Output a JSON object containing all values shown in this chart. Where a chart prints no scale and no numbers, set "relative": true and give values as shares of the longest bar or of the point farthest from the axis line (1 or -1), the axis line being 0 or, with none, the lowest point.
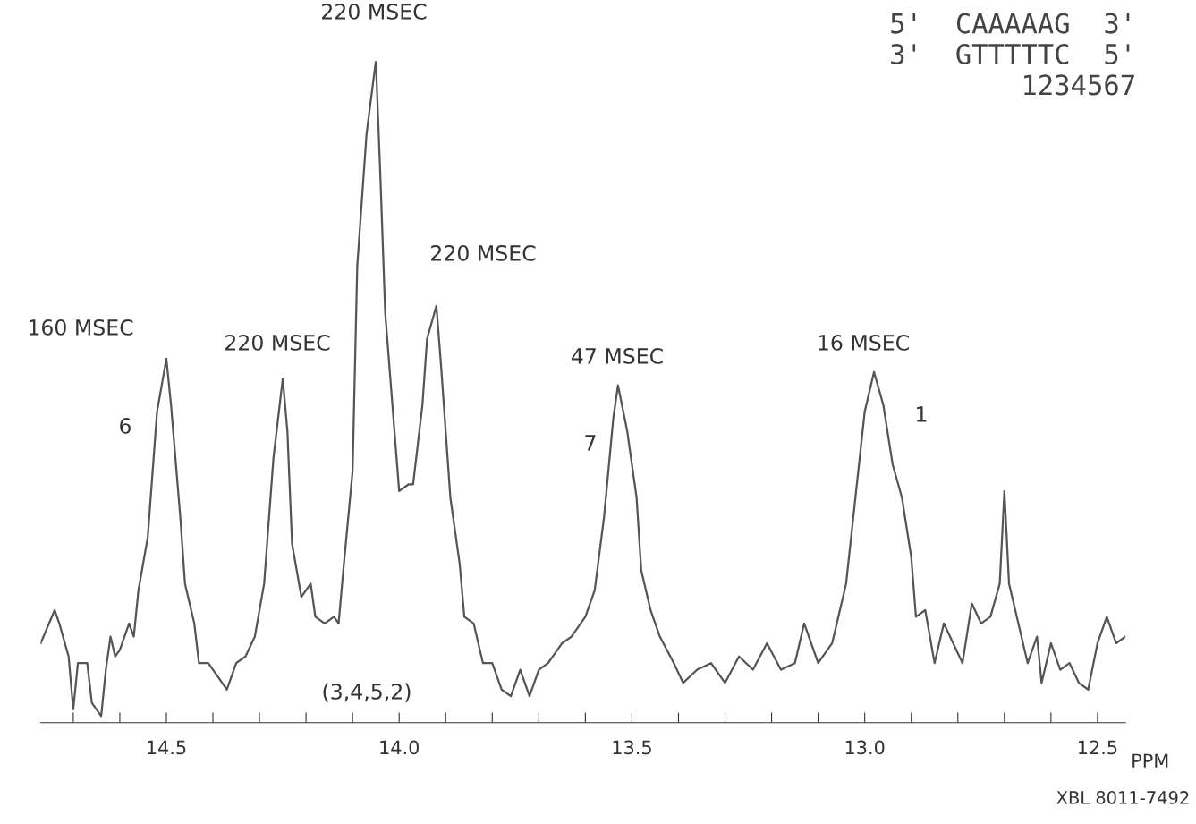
{
  "chart_data": {
    "type": "line",
    "relative": true,
    "xlabel": "PPM",
    "xlim": [
      14.77,
      12.44
    ],
    "xticks": [
      {
        "value": 14.7,
        "label": null
      },
      {
        "value": 14.6,
        "label": null
      },
      {
        "value": 14.5,
        "label": "14.5"
      },
      {
        "value": 14.4,
        "label": null
      },
      {
        "value": 14.3,
        "label": null
      },
      {
        "value": 14.2,
        "label": null
      },
      {
        "value": 14.1,
        "label": null
      },
      {
        "value": 14.0,
        "label": "14.0"
      },
      {
        "value": 13.9,
        "label": null
      },
      {
        "value": 13.8,
        "label": null
      },
      {
        "value": 13.7,
        "label": null
      },
      {
        "value": 13.6,
        "label": null
      },
      {
        "value": 13.5,
        "label": "13.5"
      },
      {
        "value": 13.4,
        "label": null
      },
      {
        "value": 13.3,
        "label": null
      },
      {
        "value": 13.2,
        "label": null
      },
      {
        "value": 13.1,
        "label": null
      },
      {
        "value": 13.0,
        "label": "13.0"
      },
      {
        "value": 12.9,
        "label": null
      },
      {
        "value": 12.8,
        "label": null
      },
      {
        "value": 12.7,
        "label": null
      },
      {
        "value": 12.6,
        "label": null
      },
      {
        "value": 12.5,
        "label": "12.5"
      }
    ],
    "grid": false,
    "marker": "none",
    "line_style": "solid",
    "series": [
      {
        "color": "#555555",
        "x": [
          14.77,
          14.74,
          14.73,
          14.71,
          14.7,
          14.69,
          14.67,
          14.66,
          14.64,
          14.63,
          14.62,
          14.61,
          14.6,
          14.58,
          14.57,
          14.56,
          14.54,
          14.52,
          14.5,
          14.49,
          14.47,
          14.46,
          14.44,
          14.43,
          14.41,
          14.39,
          14.37,
          14.35,
          14.33,
          14.31,
          14.29,
          14.27,
          14.25,
          14.24,
          14.23,
          14.21,
          14.19,
          14.18,
          14.16,
          14.14,
          14.13,
          14.12,
          14.1,
          14.09,
          14.07,
          14.05,
          14.04,
          14.03,
          14.01,
          14.0,
          13.98,
          13.97,
          13.95,
          13.94,
          13.92,
          13.91,
          13.89,
          13.87,
          13.86,
          13.84,
          13.82,
          13.8,
          13.78,
          13.76,
          13.74,
          13.72,
          13.7,
          13.68,
          13.65,
          13.63,
          13.6,
          13.58,
          13.56,
          13.54,
          13.53,
          13.51,
          13.49,
          13.48,
          13.46,
          13.44,
          13.41,
          13.39,
          13.36,
          13.33,
          13.3,
          13.27,
          13.24,
          13.21,
          13.18,
          13.15,
          13.13,
          13.1,
          13.07,
          13.04,
          13.02,
          13.0,
          12.98,
          12.96,
          12.94,
          12.92,
          12.9,
          12.89,
          12.87,
          12.85,
          12.83,
          12.81,
          12.79,
          12.77,
          12.75,
          12.73,
          12.71,
          12.7,
          12.69,
          12.67,
          12.65,
          12.63,
          12.62,
          12.6,
          12.58,
          12.56,
          12.54,
          12.52,
          12.5,
          12.48,
          12.46,
          12.44
        ],
        "values": [
          0.12,
          0.17,
          0.15,
          0.1,
          0.02,
          0.09,
          0.09,
          0.03,
          0.01,
          0.08,
          0.13,
          0.1,
          0.11,
          0.15,
          0.13,
          0.2,
          0.28,
          0.47,
          0.55,
          0.48,
          0.31,
          0.21,
          0.15,
          0.09,
          0.09,
          0.07,
          0.05,
          0.09,
          0.1,
          0.13,
          0.21,
          0.4,
          0.52,
          0.44,
          0.27,
          0.19,
          0.21,
          0.16,
          0.15,
          0.16,
          0.15,
          0.23,
          0.38,
          0.69,
          0.89,
          1.0,
          0.82,
          0.62,
          0.44,
          0.35,
          0.36,
          0.36,
          0.48,
          0.58,
          0.63,
          0.54,
          0.34,
          0.24,
          0.16,
          0.15,
          0.09,
          0.09,
          0.05,
          0.04,
          0.08,
          0.04,
          0.08,
          0.09,
          0.12,
          0.13,
          0.16,
          0.2,
          0.31,
          0.46,
          0.51,
          0.44,
          0.34,
          0.23,
          0.17,
          0.13,
          0.09,
          0.06,
          0.08,
          0.09,
          0.06,
          0.1,
          0.08,
          0.12,
          0.08,
          0.09,
          0.15,
          0.09,
          0.12,
          0.21,
          0.34,
          0.47,
          0.53,
          0.48,
          0.39,
          0.34,
          0.25,
          0.16,
          0.17,
          0.09,
          0.15,
          0.12,
          0.09,
          0.18,
          0.15,
          0.16,
          0.21,
          0.35,
          0.21,
          0.15,
          0.09,
          0.13,
          0.06,
          0.12,
          0.08,
          0.09,
          0.06,
          0.05,
          0.12,
          0.16,
          0.12,
          0.13
        ]
      }
    ],
    "annotations": [
      "160 MSEC",
      "220 MSEC",
      "220 MSEC",
      "220 MSEC",
      "47 MSEC",
      "16 MSEC",
      "6",
      "7",
      "1",
      "(3,4,5,2)",
      "5'  CAAAAAG  3'\n3'  GTTTTTC  5'\n      1234567",
      "XBL 8011-7492"
    ]
  }
}
